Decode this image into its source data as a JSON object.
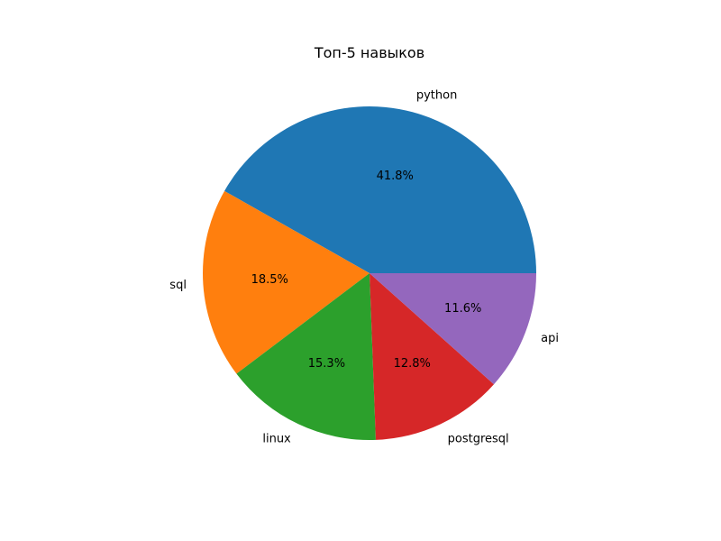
{
  "chart_data": {
    "type": "pie",
    "title": "Топ-5 навыков",
    "categories": [
      "python",
      "sql",
      "linux",
      "postgresql",
      "api"
    ],
    "values": [
      41.8,
      18.5,
      15.3,
      12.8,
      11.6
    ],
    "percent_labels": [
      "41.8%",
      "18.5%",
      "15.3%",
      "12.8%",
      "11.6%"
    ],
    "colors": [
      "#1f77b4",
      "#ff7f0e",
      "#2ca02c",
      "#d62728",
      "#9467bd"
    ],
    "start_angle_deg": 0,
    "direction": "counterclockwise"
  }
}
